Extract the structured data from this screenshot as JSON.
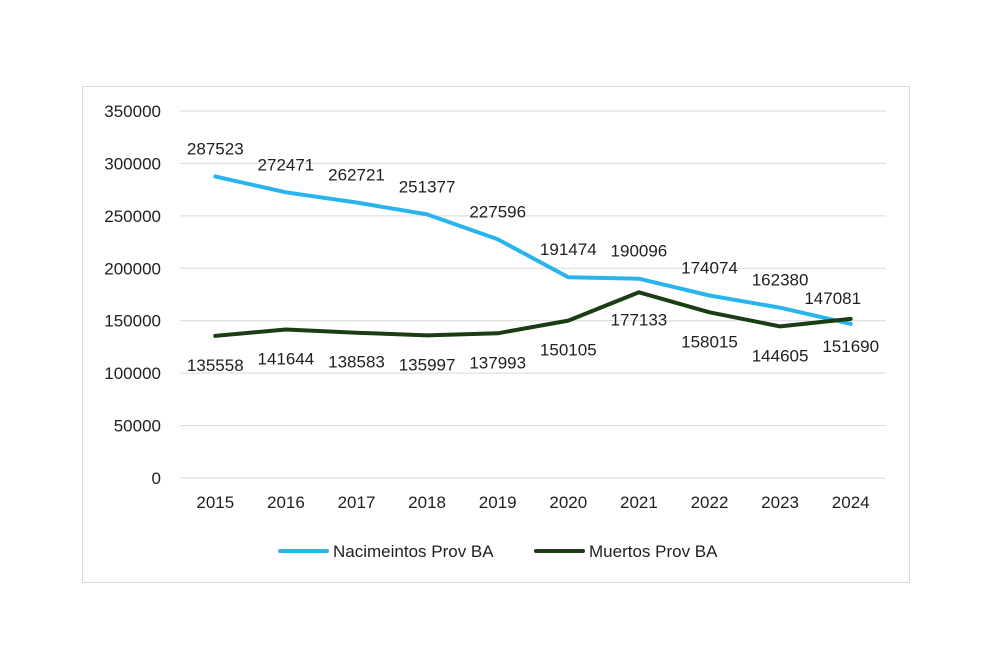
{
  "chart_data": {
    "type": "line",
    "title": "",
    "xlabel": "",
    "ylabel": "",
    "x": [
      "2015",
      "2016",
      "2017",
      "2018",
      "2019",
      "2020",
      "2021",
      "2022",
      "2023",
      "2024"
    ],
    "ylim": [
      0,
      350000
    ],
    "yticks": [
      "0",
      "50000",
      "100000",
      "150000",
      "200000",
      "250000",
      "300000",
      "350000"
    ],
    "grid": true,
    "legend_position": "bottom",
    "series": [
      {
        "name": "Nacimeintos Prov BA",
        "color": "#29b5ec",
        "values": [
          287523,
          272471,
          262721,
          251377,
          227596,
          191474,
          190096,
          174074,
          162380,
          147081
        ],
        "labels": [
          "287523",
          "272471",
          "262721",
          "251377",
          "227596",
          "191474",
          "190096",
          "174074",
          "162380",
          "147081"
        ]
      },
      {
        "name": "Muertos Prov BA",
        "color": "#1a3d14",
        "values": [
          135558,
          141644,
          138583,
          135997,
          137993,
          150105,
          177133,
          158015,
          144605,
          151690
        ],
        "labels": [
          "135558",
          "141644",
          "138583",
          "135997",
          "137993",
          "150105",
          "177133",
          "158015",
          "144605",
          "151690"
        ]
      }
    ]
  }
}
